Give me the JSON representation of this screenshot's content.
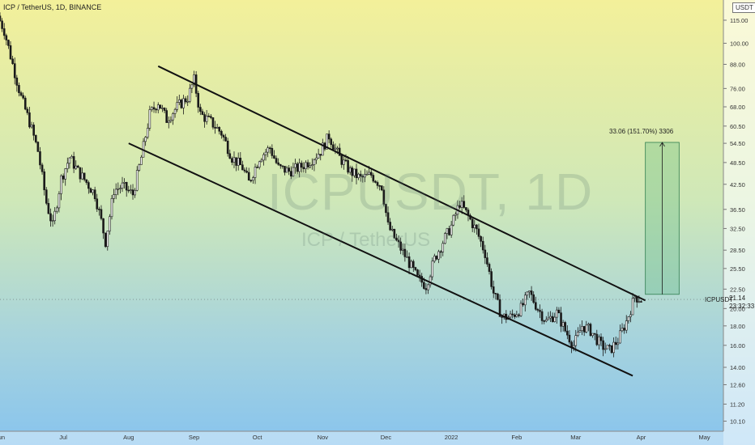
{
  "header": {
    "title": "ICP / TetherUS, 1D, BINANCE"
  },
  "watermark": {
    "symbol": "ICPUSDT, 1D",
    "pair": "ICP / TetherUS"
  },
  "price_axis": {
    "unit": "USDT",
    "symbol_label": "ICPUSDT",
    "last_price": "21.14",
    "countdown": "23:32:33"
  },
  "measure": {
    "label": "33.06 (151.70%) 3306"
  },
  "chart_data": {
    "type": "candlestick",
    "title": "ICP / TetherUS, 1D, BINANCE",
    "x_start": "2021-06-01",
    "x_end": "2022-05-10",
    "ylim": [
      9.5,
      130
    ],
    "log_scale": true,
    "y_ticks": [
      "115.00",
      "100.00",
      "88.00",
      "76.00",
      "68.00",
      "60.50",
      "54.50",
      "48.50",
      "42.50",
      "36.50",
      "32.50",
      "28.50",
      "25.50",
      "22.50",
      "20.00",
      "18.00",
      "16.00",
      "14.00",
      "12.60",
      "11.20",
      "10.10"
    ],
    "x_ticks": [
      {
        "date": "2021-06-01",
        "label": "Jun"
      },
      {
        "date": "2021-07-01",
        "label": "Jul"
      },
      {
        "date": "2021-08-01",
        "label": "Aug"
      },
      {
        "date": "2021-09-01",
        "label": "Sep"
      },
      {
        "date": "2021-10-01",
        "label": "Oct"
      },
      {
        "date": "2021-11-01",
        "label": "Nov"
      },
      {
        "date": "2021-12-01",
        "label": "Dec"
      },
      {
        "date": "2022-01-01",
        "label": "2022"
      },
      {
        "date": "2022-02-01",
        "label": "Feb"
      },
      {
        "date": "2022-03-01",
        "label": "Mar"
      },
      {
        "date": "2022-04-01",
        "label": "Apr"
      },
      {
        "date": "2022-05-01",
        "label": "May"
      }
    ],
    "price_path": [
      [
        "2021-06-01",
        118
      ],
      [
        "2021-06-04",
        108
      ],
      [
        "2021-06-08",
        88
      ],
      [
        "2021-06-12",
        72
      ],
      [
        "2021-06-16",
        62
      ],
      [
        "2021-06-20",
        52
      ],
      [
        "2021-06-24",
        38
      ],
      [
        "2021-06-27",
        33
      ],
      [
        "2021-07-01",
        44
      ],
      [
        "2021-07-05",
        50
      ],
      [
        "2021-07-09",
        46
      ],
      [
        "2021-07-13",
        43
      ],
      [
        "2021-07-17",
        40
      ],
      [
        "2021-07-20",
        34
      ],
      [
        "2021-07-22",
        30
      ],
      [
        "2021-07-26",
        41
      ],
      [
        "2021-07-30",
        42
      ],
      [
        "2021-08-04",
        40
      ],
      [
        "2021-08-08",
        50
      ],
      [
        "2021-08-12",
        65
      ],
      [
        "2021-08-16",
        70
      ],
      [
        "2021-08-20",
        63
      ],
      [
        "2021-08-25",
        68
      ],
      [
        "2021-08-30",
        72
      ],
      [
        "2021-09-02",
        80
      ],
      [
        "2021-09-05",
        65
      ],
      [
        "2021-09-10",
        62
      ],
      [
        "2021-09-15",
        58
      ],
      [
        "2021-09-20",
        50
      ],
      [
        "2021-09-25",
        47
      ],
      [
        "2021-09-28",
        43
      ],
      [
        "2021-10-03",
        50
      ],
      [
        "2021-10-08",
        53
      ],
      [
        "2021-10-12",
        47
      ],
      [
        "2021-10-17",
        46
      ],
      [
        "2021-10-22",
        47
      ],
      [
        "2021-10-27",
        49
      ],
      [
        "2021-11-01",
        52
      ],
      [
        "2021-11-05",
        57
      ],
      [
        "2021-11-10",
        50
      ],
      [
        "2021-11-15",
        46
      ],
      [
        "2021-11-20",
        44
      ],
      [
        "2021-11-25",
        45
      ],
      [
        "2021-11-30",
        42
      ],
      [
        "2021-12-03",
        33
      ],
      [
        "2021-12-07",
        30
      ],
      [
        "2021-12-12",
        27
      ],
      [
        "2021-12-17",
        24
      ],
      [
        "2021-12-21",
        23
      ],
      [
        "2021-12-25",
        27
      ],
      [
        "2021-12-29",
        30
      ],
      [
        "2022-01-02",
        33
      ],
      [
        "2022-01-06",
        38
      ],
      [
        "2022-01-10",
        35
      ],
      [
        "2022-01-14",
        32
      ],
      [
        "2022-01-18",
        28
      ],
      [
        "2022-01-22",
        22
      ],
      [
        "2022-01-26",
        19
      ],
      [
        "2022-01-30",
        19
      ],
      [
        "2022-02-04",
        20
      ],
      [
        "2022-02-08",
        22
      ],
      [
        "2022-02-12",
        20
      ],
      [
        "2022-02-16",
        18.5
      ],
      [
        "2022-02-21",
        19.5
      ],
      [
        "2022-02-25",
        17.5
      ],
      [
        "2022-03-01",
        16
      ],
      [
        "2022-03-05",
        18
      ],
      [
        "2022-03-09",
        17.5
      ],
      [
        "2022-03-14",
        16
      ],
      [
        "2022-03-18",
        15.5
      ],
      [
        "2022-03-22",
        16.5
      ],
      [
        "2022-03-26",
        18.5
      ],
      [
        "2022-03-30",
        21.5
      ],
      [
        "2022-04-02",
        21.14
      ]
    ],
    "trendlines": [
      {
        "name": "upper",
        "from": [
          "2021-08-15",
          87
        ],
        "to": [
          "2022-04-03",
          21
        ]
      },
      {
        "name": "lower",
        "from": [
          "2021-08-01",
          54.5
        ],
        "to": [
          "2022-03-28",
          13.3
        ]
      }
    ],
    "measure_box": {
      "date_from": "2022-04-03",
      "date_to": "2022-04-19",
      "price_from": 21.8,
      "price_to": 54.8,
      "label": "33.06 (151.70%) 3306"
    },
    "last_price": 21.14
  }
}
